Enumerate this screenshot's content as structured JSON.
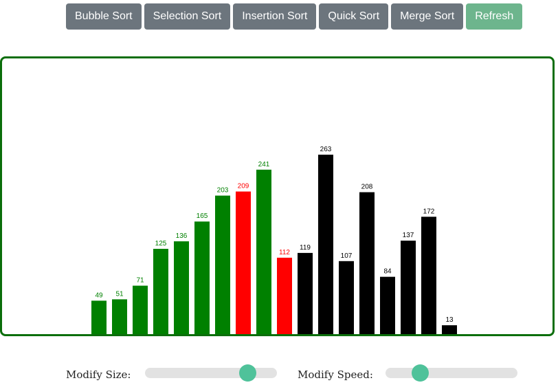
{
  "toolbar": {
    "buttons": [
      {
        "label": "Bubble Sort"
      },
      {
        "label": "Selection Sort"
      },
      {
        "label": "Insertion Sort"
      },
      {
        "label": "Quick Sort"
      },
      {
        "label": "Merge Sort"
      },
      {
        "label": "Refresh"
      }
    ]
  },
  "colors": {
    "sorted": "#008000",
    "active": "#ff0000",
    "unsorted": "#000000",
    "button": "#6c757d",
    "refresh": "#6db58d",
    "slider": "#4fc29a",
    "border": "#0b6e0b"
  },
  "chart_data": {
    "type": "bar",
    "values": [
      49,
      51,
      71,
      125,
      136,
      165,
      203,
      209,
      241,
      112,
      119,
      263,
      107,
      208,
      84,
      137,
      172,
      13
    ],
    "states": [
      "sorted",
      "sorted",
      "sorted",
      "sorted",
      "sorted",
      "sorted",
      "sorted",
      "active",
      "sorted",
      "active",
      "unsorted",
      "unsorted",
      "unsorted",
      "unsorted",
      "unsorted",
      "unsorted",
      "unsorted",
      "unsorted"
    ],
    "ylim": [
      0,
      400
    ]
  },
  "controls": {
    "size": {
      "label": "Modify Size:",
      "level": 0.82
    },
    "speed": {
      "label": "Modify Speed:",
      "level": 0.23
    }
  }
}
